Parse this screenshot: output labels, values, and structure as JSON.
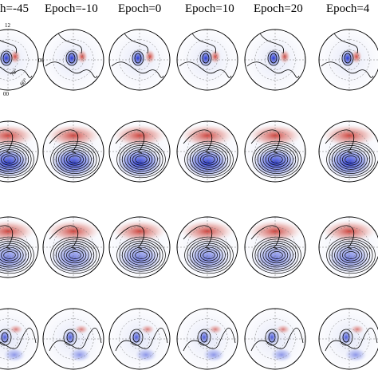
{
  "headers": [
    "h=-45",
    "Epoch=-10",
    "Epoch=0",
    "Epoch=10",
    "Epoch=20",
    "Epoch=4"
  ],
  "panel_labels": {
    "top": "12",
    "right": "06",
    "bottom": "00",
    "ring_inner": "70°",
    "ring_outer": "60°"
  }
}
